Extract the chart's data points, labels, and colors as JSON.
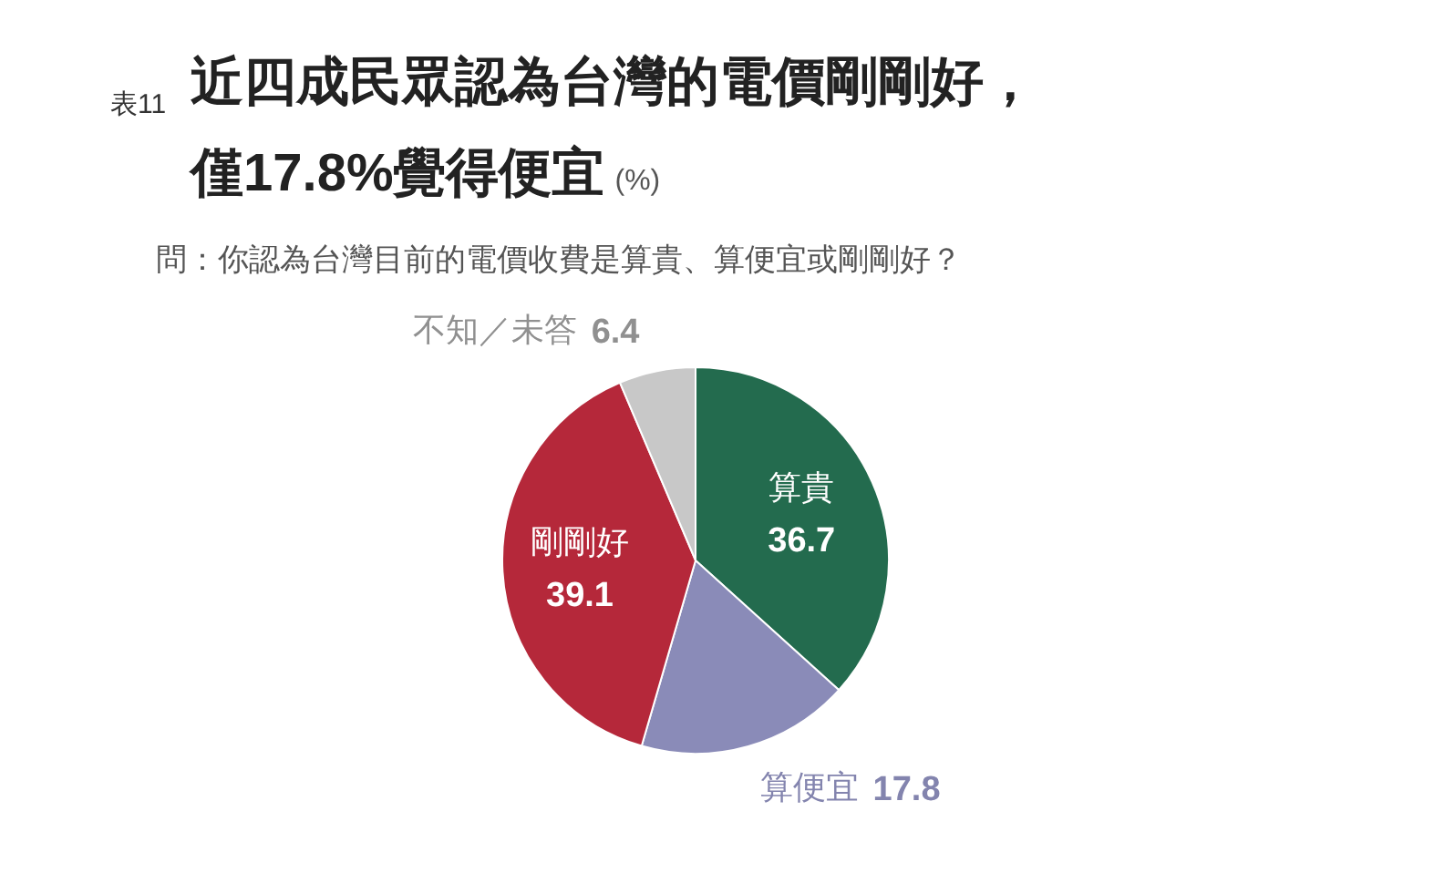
{
  "chart_data": {
    "type": "pie",
    "title": "近四成民眾認為台灣的電價剛剛好，僅17.8%覺得便宜",
    "subtitle": "問：你認為台灣目前的電價收費是算貴、算便宜或剛剛好？",
    "annotations": [
      "表11",
      "(%)"
    ],
    "categories": [
      "算貴",
      "算便宜",
      "剛剛好",
      "不知／未答"
    ],
    "values": [
      36.7,
      17.8,
      39.1,
      6.4
    ],
    "colors": [
      "#236b4e",
      "#8a8bb8",
      "#b5283a",
      "#c8c8c8"
    ],
    "data_labels": true
  }
}
